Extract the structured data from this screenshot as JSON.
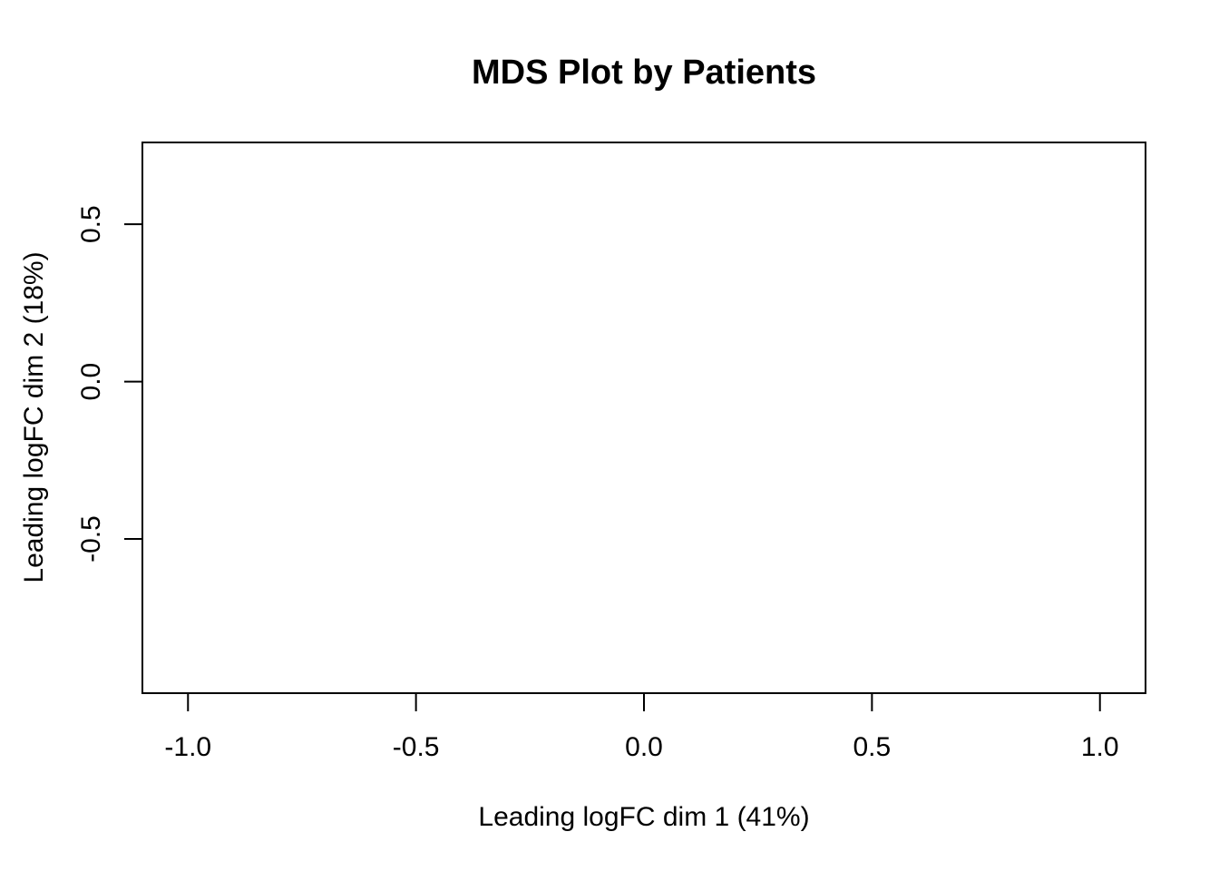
{
  "chart_data": {
    "type": "scatter",
    "title": "MDS Plot by Patients",
    "xlabel": "Leading logFC dim 1 (41%)",
    "ylabel": "Leading logFC dim 2 (18%)",
    "xlim": [
      -1.1,
      1.1
    ],
    "ylim": [
      -0.99,
      0.76
    ],
    "xticks": [
      {
        "value": -1.0,
        "label": "-1.0"
      },
      {
        "value": -0.5,
        "label": "-0.5"
      },
      {
        "value": 0.0,
        "label": "0.0"
      },
      {
        "value": 0.5,
        "label": "0.5"
      },
      {
        "value": 1.0,
        "label": "1.0"
      }
    ],
    "yticks": [
      {
        "value": 0.5,
        "label": "0.5"
      },
      {
        "value": 0.0,
        "label": "0.0"
      },
      {
        "value": -0.5,
        "label": "-0.5"
      }
    ],
    "series": [],
    "grid": false,
    "legend": "none",
    "colors": {
      "axis": "#000000",
      "background": "#ffffff"
    }
  }
}
